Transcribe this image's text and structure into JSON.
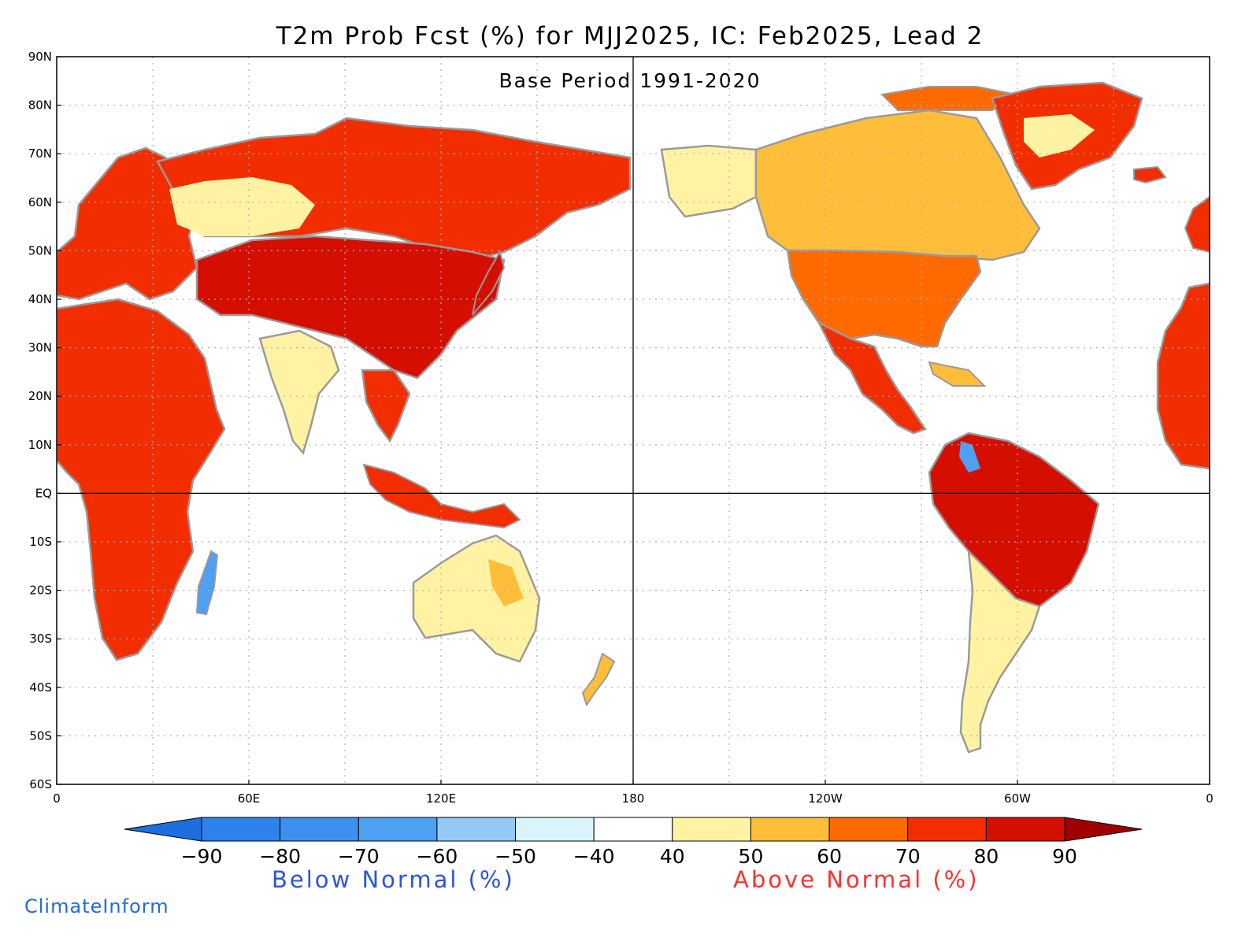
{
  "title": "T2m Prob Fcst (%) for MJJ2025, IC: Feb2025, Lead 2",
  "subtitle": "Base Period 1991-2020",
  "credit": "ClimateInform",
  "colors": {
    "ocean": "#ffffff",
    "coast": "#9a9a9a",
    "grid_dotted": "#b0b0b0",
    "below_caption": "#2a55e0",
    "above_caption": "#ff3030",
    "credit": "#1f6bdc"
  },
  "map": {
    "projection": "equidistant-cylindrical",
    "lon_range": [
      0,
      360
    ],
    "lat_range": [
      -60,
      90
    ],
    "lat_labels": [
      "90N",
      "80N",
      "70N",
      "60N",
      "50N",
      "40N",
      "30N",
      "20N",
      "10N",
      "EQ",
      "10S",
      "20S",
      "30S",
      "40S",
      "50S",
      "60S"
    ],
    "lon_labels": [
      "0",
      "60E",
      "120E",
      "180",
      "120W",
      "60W",
      "0"
    ]
  },
  "colorbar": {
    "ticks": [
      "-90",
      "-80",
      "-70",
      "-60",
      "-50",
      "-40",
      "40",
      "50",
      "60",
      "70",
      "80",
      "90"
    ],
    "colors": [
      "#1d6fe0",
      "#2d82ec",
      "#3c91f0",
      "#4ea0f2",
      "#93c9f6",
      "#d9f4fb",
      "#ffffff",
      "#fff3a3",
      "#ffbe3a",
      "#ff6a00",
      "#f22e00",
      "#d40f00",
      "#a00000"
    ],
    "below_caption": "Below Normal (%)",
    "above_caption": "Above Normal (%)"
  },
  "regions": [
    {
      "name": "northern-eurasia",
      "shade": "#f22e00"
    },
    {
      "name": "western-siberia",
      "shade": "#fff3a3"
    },
    {
      "name": "central-asia-china",
      "shade": "#d40f00"
    },
    {
      "name": "india",
      "shade": "#fff3a3"
    },
    {
      "name": "africa",
      "shade": "#f22e00"
    },
    {
      "name": "australia",
      "shade": "#fff3a3"
    },
    {
      "name": "alaska",
      "shade": "#fff3a3"
    },
    {
      "name": "canada",
      "shade": "#ffbe3a"
    },
    {
      "name": "usa",
      "shade": "#ff6a00"
    },
    {
      "name": "mexico",
      "shade": "#f22e00"
    },
    {
      "name": "greenland",
      "shade": "#f22e00"
    },
    {
      "name": "amazon",
      "shade": "#d40f00"
    },
    {
      "name": "southern-south-america",
      "shade": "#fff3a3"
    },
    {
      "name": "madagascar",
      "shade": "#4ea0f2"
    }
  ]
}
